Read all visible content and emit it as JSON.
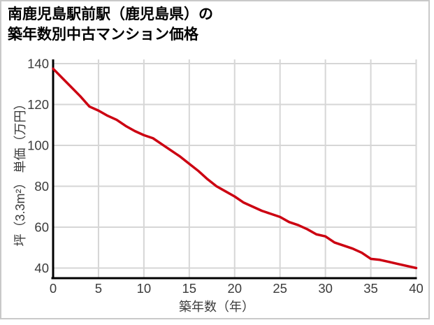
{
  "page": {
    "background": "#ffffff",
    "frame_border_color": "#c9c9c9"
  },
  "header": {
    "title_line1": "南鹿児島駅前駅（鹿児島県）の",
    "title_line2": "築年数別中古マンション価格"
  },
  "chart_data": {
    "type": "line",
    "title": "南鹿児島駅前駅（鹿児島県）の築年数別中古マンション価格",
    "xlabel": "築年数（年）",
    "ylabel": "坪（3.3m²） 単価（万円）",
    "x": [
      0,
      1,
      2,
      3,
      4,
      5,
      6,
      7,
      8,
      9,
      10,
      11,
      12,
      13,
      14,
      15,
      16,
      17,
      18,
      19,
      20,
      21,
      22,
      23,
      24,
      25,
      26,
      27,
      28,
      29,
      30,
      31,
      32,
      33,
      34,
      35,
      36,
      37,
      38,
      39,
      40
    ],
    "series": [
      {
        "name": "坪単価",
        "color": "#cc0011",
        "values": [
          137.5,
          133,
          128.5,
          124,
          119,
          117,
          114.5,
          112.5,
          109.5,
          107,
          105,
          103.5,
          100.5,
          97.5,
          94.5,
          91,
          87.5,
          83.5,
          80,
          77.5,
          75,
          72,
          70,
          68,
          66.5,
          65,
          62.5,
          61,
          59,
          56.5,
          55.5,
          52.5,
          51,
          49.5,
          47.5,
          44.5,
          44,
          43,
          42,
          41,
          40
        ]
      }
    ],
    "xlim": [
      0,
      40
    ],
    "xticks": [
      0,
      5,
      10,
      15,
      20,
      25,
      30,
      35,
      40
    ],
    "yticks": [
      40,
      60,
      80,
      100,
      120,
      140
    ],
    "ymax_grid": 140,
    "ymin_grid": 40,
    "grid": true,
    "legend": "none",
    "grid_color": "#d6d6d6",
    "axis_color": "#000000",
    "tick_label_color": "#3b3b3b"
  }
}
